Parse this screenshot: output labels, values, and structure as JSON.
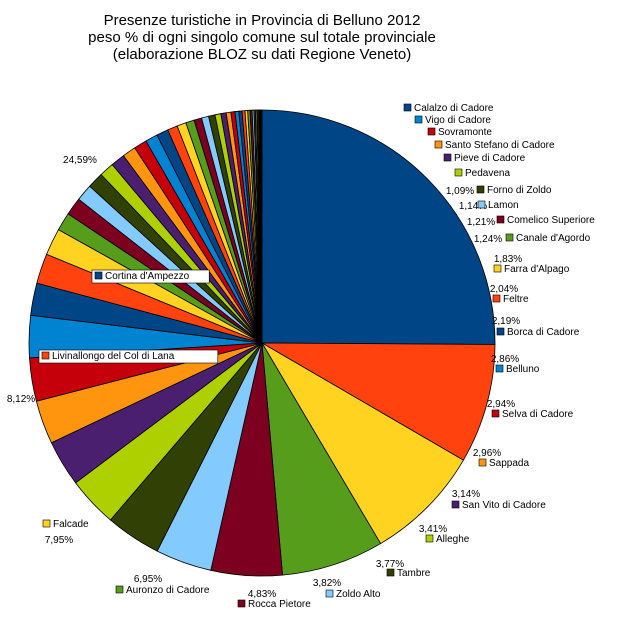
{
  "chart_data": {
    "type": "pie",
    "title": [
      "Presenze turistiche in Provincia di Belluno 2012",
      "peso % di ogni singolo comune sul totale provinciale",
      "(elaborazione BLOZ su dati Regione Veneto)"
    ],
    "unit": "%",
    "slices": [
      {
        "name": "Cortina d'Ampezzo",
        "value": 24.59,
        "label": "24,59%",
        "color": "#004586",
        "show_pct": true,
        "show_name": true
      },
      {
        "name": "Livinallongo del Col di Lana",
        "value": 8.12,
        "label": "8,12%",
        "color": "#ff420e",
        "show_pct": true,
        "show_name": true
      },
      {
        "name": "Falcade",
        "value": 7.95,
        "label": "7,95%",
        "color": "#ffd320",
        "show_pct": true,
        "show_name": true
      },
      {
        "name": "Auronzo di Cadore",
        "value": 6.95,
        "label": "6,95%",
        "color": "#579d1c",
        "show_pct": true,
        "show_name": true
      },
      {
        "name": "Rocca Pietore",
        "value": 4.83,
        "label": "4,83%",
        "color": "#7e0021",
        "show_pct": true,
        "show_name": true
      },
      {
        "name": "Zoldo Alto",
        "value": 3.82,
        "label": "3,82%",
        "color": "#83caff",
        "show_pct": true,
        "show_name": true
      },
      {
        "name": "Tambre",
        "value": 3.77,
        "label": "3,77%",
        "color": "#314004",
        "show_pct": true,
        "show_name": true
      },
      {
        "name": "Alleghe",
        "value": 3.41,
        "label": "3,41%",
        "color": "#aecf00",
        "show_pct": true,
        "show_name": true
      },
      {
        "name": "San Vito di Cadore",
        "value": 3.14,
        "label": "3,14%",
        "color": "#4b1f6f",
        "show_pct": true,
        "show_name": true
      },
      {
        "name": "Sappada",
        "value": 2.96,
        "label": "2,96%",
        "color": "#ff950e",
        "show_pct": true,
        "show_name": true
      },
      {
        "name": "Selva di Cadore",
        "value": 2.94,
        "label": "2,94%",
        "color": "#c5000b",
        "show_pct": true,
        "show_name": true
      },
      {
        "name": "Belluno",
        "value": 2.86,
        "label": "2,86%",
        "color": "#0084d1",
        "show_pct": true,
        "show_name": true
      },
      {
        "name": "Borca di Cadore",
        "value": 2.19,
        "label": "2,19%",
        "color": "#004586",
        "show_pct": true,
        "show_name": true
      },
      {
        "name": "Feltre",
        "value": 2.04,
        "label": "2,04%",
        "color": "#ff420e",
        "show_pct": true,
        "show_name": true
      },
      {
        "name": "Farra d'Alpago",
        "value": 1.83,
        "label": "1,83%",
        "color": "#ffd320",
        "show_pct": true,
        "show_name": true
      },
      {
        "name": "Canale d'Agordo",
        "value": 1.24,
        "label": "1,24%",
        "color": "#579d1c",
        "show_pct": true,
        "show_name": true
      },
      {
        "name": "Comelico Superiore",
        "value": 1.21,
        "label": "1,21%",
        "color": "#7e0021",
        "show_pct": true,
        "show_name": true
      },
      {
        "name": "Lamon",
        "value": 1.14,
        "label": "1,14%",
        "color": "#83caff",
        "show_pct": true,
        "show_name": true
      },
      {
        "name": "Forno di Zoldo",
        "value": 1.09,
        "label": "1,09%",
        "color": "#314004",
        "show_pct": true,
        "show_name": true
      },
      {
        "name": "Pedavena",
        "value": 1.0,
        "color": "#aecf00",
        "show_pct": false,
        "show_name": true
      },
      {
        "name": "Pieve di Cadore",
        "value": 0.96,
        "color": "#4b1f6f",
        "show_pct": false,
        "show_name": true
      },
      {
        "name": "Santo Stefano di Cadore",
        "value": 0.92,
        "color": "#ff950e",
        "show_pct": false,
        "show_name": true
      },
      {
        "name": "Sovramonte",
        "value": 0.88,
        "color": "#c5000b",
        "show_pct": false,
        "show_name": true
      },
      {
        "name": "Vigo di Cadore",
        "value": 0.84,
        "color": "#0084d1",
        "show_pct": false,
        "show_name": true
      },
      {
        "name": "Calalzo di Cadore",
        "value": 0.8,
        "color": "#004586",
        "show_pct": false,
        "show_name": true
      },
      {
        "value": 0.68,
        "color": "#ff420e"
      },
      {
        "value": 0.62,
        "color": "#ffd320"
      },
      {
        "value": 0.58,
        "color": "#579d1c"
      },
      {
        "value": 0.52,
        "color": "#7e0021"
      },
      {
        "value": 0.48,
        "color": "#83caff"
      },
      {
        "value": 0.44,
        "color": "#314004"
      },
      {
        "value": 0.4,
        "color": "#aecf00"
      },
      {
        "value": 0.36,
        "color": "#4b1f6f"
      },
      {
        "value": 0.32,
        "color": "#ff950e"
      },
      {
        "value": 0.28,
        "color": "#c5000b"
      },
      {
        "value": 0.25,
        "color": "#0084d1"
      },
      {
        "value": 0.22,
        "color": "#004586"
      },
      {
        "value": 0.2,
        "color": "#ff420e"
      },
      {
        "value": 0.18,
        "color": "#ffd320"
      },
      {
        "value": 0.16,
        "color": "#579d1c"
      },
      {
        "value": 0.14,
        "color": "#7e0021"
      },
      {
        "value": 0.12,
        "color": "#83caff"
      },
      {
        "value": 0.1,
        "color": "#314004"
      },
      {
        "value": 0.09,
        "color": "#aecf00"
      },
      {
        "value": 0.08,
        "color": "#4b1f6f"
      },
      {
        "value": 0.07,
        "color": "#ff950e"
      },
      {
        "value": 0.06,
        "color": "#c5000b"
      },
      {
        "value": 0.05,
        "color": "#0084d1"
      },
      {
        "value": 0.05,
        "color": "#004586"
      },
      {
        "value": 0.04,
        "color": "#ff420e"
      }
    ]
  }
}
